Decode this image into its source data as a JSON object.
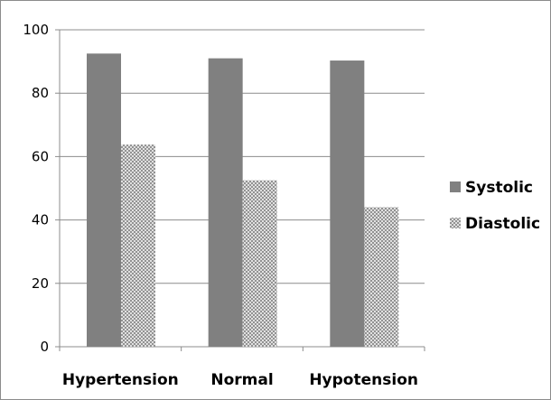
{
  "chart_data": {
    "type": "bar",
    "categories": [
      "Hypertension",
      "Normal",
      "Hypotension"
    ],
    "series": [
      {
        "name": "Systolic",
        "values": [
          92.5,
          91,
          90.3
        ],
        "color": "#808080",
        "pattern": "solid"
      },
      {
        "name": "Diastolic",
        "values": [
          63.8,
          52.5,
          44
        ],
        "color": "#9a9a9a",
        "pattern": "crosshatch"
      }
    ],
    "ylim": [
      0,
      100
    ],
    "yticks": [
      0,
      20,
      40,
      60,
      80,
      100
    ],
    "grid": true,
    "legend": "right",
    "title": "",
    "xlabel": "",
    "ylabel": ""
  }
}
